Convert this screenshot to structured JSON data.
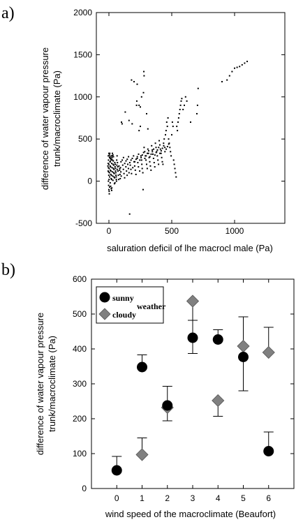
{
  "chart_data": [
    {
      "panel_label": "a)",
      "type": "scatter",
      "xlabel": "saluration deficil of lhe macrocl male (Pa)",
      "ylabel_line1": "difference of water vapour pressure",
      "ylabel_line2": "trunk/macroclimate (Pa)",
      "xlim": [
        -100,
        1400
      ],
      "ylim": [
        -500,
        2000
      ],
      "x_ticks": [
        0,
        500,
        1000
      ],
      "y_ticks": [
        -500,
        0,
        500,
        1000,
        1500,
        2000
      ],
      "grid": false,
      "points": [
        [
          -5,
          300
        ],
        [
          -3,
          250
        ],
        [
          0,
          200
        ],
        [
          2,
          150
        ],
        [
          4,
          100
        ],
        [
          6,
          50
        ],
        [
          -4,
          0
        ],
        [
          -2,
          -50
        ],
        [
          0,
          -100
        ],
        [
          3,
          -150
        ],
        [
          5,
          280
        ],
        [
          8,
          230
        ],
        [
          10,
          180
        ],
        [
          12,
          130
        ],
        [
          15,
          80
        ],
        [
          18,
          30
        ],
        [
          20,
          260
        ],
        [
          22,
          210
        ],
        [
          25,
          160
        ],
        [
          28,
          110
        ],
        [
          30,
          60
        ],
        [
          32,
          10
        ],
        [
          35,
          240
        ],
        [
          38,
          190
        ],
        [
          40,
          140
        ],
        [
          42,
          90
        ],
        [
          45,
          40
        ],
        [
          48,
          -20
        ],
        [
          50,
          200
        ],
        [
          52,
          150
        ],
        [
          55,
          100
        ],
        [
          58,
          50
        ],
        [
          60,
          0
        ],
        [
          62,
          250
        ],
        [
          65,
          300
        ],
        [
          68,
          220
        ],
        [
          70,
          170
        ],
        [
          72,
          120
        ],
        [
          75,
          70
        ],
        [
          78,
          20
        ],
        [
          80,
          180
        ],
        [
          85,
          130
        ],
        [
          88,
          80
        ],
        [
          90,
          30
        ],
        [
          92,
          160
        ],
        [
          95,
          110
        ],
        [
          98,
          60
        ],
        [
          100,
          700
        ],
        [
          105,
          680
        ],
        [
          110,
          190
        ],
        [
          115,
          140
        ],
        [
          120,
          90
        ],
        [
          125,
          40
        ],
        [
          130,
          820
        ],
        [
          135,
          170
        ],
        [
          140,
          120
        ],
        [
          145,
          70
        ],
        [
          150,
          200
        ],
        [
          155,
          150
        ],
        [
          160,
          100
        ],
        [
          165,
          -390
        ],
        [
          170,
          190
        ],
        [
          175,
          140
        ],
        [
          180,
          90
        ],
        [
          185,
          680
        ],
        [
          190,
          160
        ],
        [
          200,
          230
        ],
        [
          205,
          180
        ],
        [
          210,
          130
        ],
        [
          215,
          80
        ],
        [
          220,
          900
        ],
        [
          222,
          950
        ],
        [
          225,
          270
        ],
        [
          230,
          220
        ],
        [
          235,
          170
        ],
        [
          240,
          600
        ],
        [
          245,
          120
        ],
        [
          250,
          650
        ],
        [
          255,
          300
        ],
        [
          260,
          250
        ],
        [
          262,
          200
        ],
        [
          265,
          150
        ],
        [
          270,
          100
        ],
        [
          272,
          -100
        ],
        [
          275,
          1050
        ],
        [
          278,
          1300
        ],
        [
          280,
          400
        ],
        [
          285,
          350
        ],
        [
          290,
          300
        ],
        [
          295,
          250
        ],
        [
          300,
          200
        ],
        [
          305,
          150
        ],
        [
          310,
          380
        ],
        [
          315,
          330
        ],
        [
          320,
          280
        ],
        [
          325,
          230
        ],
        [
          330,
          180
        ],
        [
          335,
          130
        ],
        [
          340,
          420
        ],
        [
          345,
          370
        ],
        [
          350,
          320
        ],
        [
          355,
          270
        ],
        [
          360,
          220
        ],
        [
          365,
          170
        ],
        [
          370,
          450
        ],
        [
          375,
          400
        ],
        [
          380,
          350
        ],
        [
          385,
          300
        ],
        [
          390,
          250
        ],
        [
          395,
          200
        ],
        [
          400,
          480
        ],
        [
          405,
          430
        ],
        [
          410,
          380
        ],
        [
          415,
          330
        ],
        [
          420,
          280
        ],
        [
          425,
          230
        ],
        [
          430,
          200
        ],
        [
          435,
          450
        ],
        [
          440,
          500
        ],
        [
          445,
          400
        ],
        [
          450,
          550
        ],
        [
          455,
          600
        ],
        [
          460,
          700
        ],
        [
          465,
          650
        ],
        [
          470,
          750
        ],
        [
          475,
          500
        ],
        [
          480,
          450
        ],
        [
          485,
          400
        ],
        [
          490,
          350
        ],
        [
          495,
          300
        ],
        [
          500,
          550
        ],
        [
          505,
          700
        ],
        [
          510,
          650
        ],
        [
          515,
          250
        ],
        [
          520,
          200
        ],
        [
          525,
          150
        ],
        [
          530,
          100
        ],
        [
          535,
          50
        ],
        [
          540,
          650
        ],
        [
          545,
          600
        ],
        [
          550,
          700
        ],
        [
          555,
          750
        ],
        [
          560,
          800
        ],
        [
          565,
          850
        ],
        [
          570,
          900
        ],
        [
          575,
          950
        ],
        [
          580,
          980
        ],
        [
          590,
          850
        ],
        [
          600,
          900
        ],
        [
          610,
          1000
        ],
        [
          620,
          950
        ],
        [
          650,
          700
        ],
        [
          700,
          800
        ],
        [
          705,
          900
        ],
        [
          710,
          1100
        ],
        [
          900,
          1180
        ],
        [
          940,
          1200
        ],
        [
          960,
          1250
        ],
        [
          980,
          1300
        ],
        [
          1000,
          1340
        ],
        [
          1020,
          1350
        ],
        [
          1040,
          1360
        ],
        [
          1060,
          1380
        ],
        [
          1080,
          1400
        ],
        [
          1100,
          1420
        ],
        [
          -6,
          120
        ],
        [
          -1,
          70
        ],
        [
          1,
          20
        ],
        [
          7,
          330
        ],
        [
          9,
          280
        ],
        [
          11,
          230
        ],
        [
          13,
          170
        ],
        [
          16,
          120
        ],
        [
          19,
          70
        ],
        [
          21,
          20
        ],
        [
          23,
          -80
        ],
        [
          26,
          300
        ],
        [
          29,
          250
        ],
        [
          33,
          200
        ],
        [
          36,
          150
        ],
        [
          39,
          100
        ],
        [
          41,
          50
        ],
        [
          44,
          -30
        ],
        [
          47,
          220
        ],
        [
          49,
          170
        ],
        [
          53,
          120
        ],
        [
          56,
          70
        ],
        [
          59,
          20
        ],
        [
          63,
          190
        ],
        [
          66,
          140
        ],
        [
          0,
          330
        ],
        [
          4,
          310
        ],
        [
          8,
          290
        ],
        [
          12,
          270
        ],
        [
          16,
          250
        ],
        [
          20,
          300
        ],
        [
          24,
          280
        ],
        [
          28,
          330
        ],
        [
          32,
          310
        ],
        [
          36,
          290
        ],
        [
          -8,
          180
        ],
        [
          -6,
          210
        ],
        [
          -4,
          160
        ],
        [
          -2,
          110
        ],
        [
          2,
          -120
        ],
        [
          6,
          -70
        ],
        [
          10,
          -20
        ],
        [
          14,
          -60
        ],
        [
          18,
          -90
        ],
        [
          22,
          -110
        ],
        [
          86,
          150
        ],
        [
          96,
          230
        ],
        [
          106,
          250
        ],
        [
          116,
          280
        ],
        [
          126,
          210
        ],
        [
          136,
          240
        ],
        [
          146,
          260
        ],
        [
          156,
          290
        ],
        [
          166,
          220
        ],
        [
          176,
          250
        ],
        [
          186,
          270
        ],
        [
          196,
          300
        ],
        [
          206,
          230
        ],
        [
          216,
          260
        ],
        [
          226,
          290
        ],
        [
          236,
          320
        ],
        [
          246,
          250
        ],
        [
          256,
          280
        ],
        [
          266,
          310
        ],
        [
          276,
          340
        ],
        [
          286,
          270
        ],
        [
          296,
          300
        ],
        [
          306,
          330
        ],
        [
          316,
          360
        ],
        [
          326,
          290
        ],
        [
          336,
          320
        ],
        [
          346,
          350
        ],
        [
          356,
          380
        ],
        [
          366,
          310
        ],
        [
          376,
          340
        ],
        [
          386,
          370
        ],
        [
          396,
          400
        ],
        [
          406,
          330
        ],
        [
          416,
          360
        ],
        [
          426,
          390
        ],
        [
          436,
          420
        ],
        [
          446,
          350
        ],
        [
          456,
          380
        ],
        [
          466,
          410
        ],
        [
          476,
          440
        ],
        [
          180,
          1200
        ],
        [
          200,
          1180
        ],
        [
          225,
          1150
        ],
        [
          260,
          1000
        ],
        [
          280,
          1250
        ],
        [
          300,
          800
        ],
        [
          160,
          720
        ],
        [
          250,
          880
        ],
        [
          240,
          900
        ],
        [
          310,
          620
        ]
      ]
    },
    {
      "panel_label": "b)",
      "type": "scatter",
      "xlabel": "wind speed of the macroclimate (Beaufort)",
      "ylabel_line1": "difference of water vapour pressure",
      "ylabel_line2": "trunk/macroclimate (Pa)",
      "xlim": [
        -1,
        7
      ],
      "ylim": [
        0,
        600
      ],
      "x_ticks": [
        0,
        1,
        2,
        3,
        4,
        5,
        6
      ],
      "y_ticks": [
        0,
        100,
        200,
        300,
        400,
        500,
        600
      ],
      "grid": false,
      "legend_position": "top-left",
      "legend_note": "weather",
      "series": [
        {
          "name": "sunny",
          "marker": "circle",
          "color": "#000000",
          "x": [
            0,
            1,
            2,
            3,
            4,
            5,
            6
          ],
          "y": [
            52,
            348,
            238,
            432,
            427,
            377,
            107
          ],
          "err_upper": [
            40,
            35,
            55,
            50,
            28,
            115,
            55
          ]
        },
        {
          "name": "cloudy",
          "marker": "diamond",
          "color": "#808080",
          "x": [
            1,
            2,
            3,
            4,
            5,
            6
          ],
          "y": [
            97,
            232,
            537,
            252,
            408,
            390
          ],
          "err_lower": [
            0,
            38,
            150,
            45,
            128,
            0
          ],
          "err_upper": [
            48,
            0,
            0,
            0,
            0,
            72
          ]
        }
      ]
    }
  ]
}
